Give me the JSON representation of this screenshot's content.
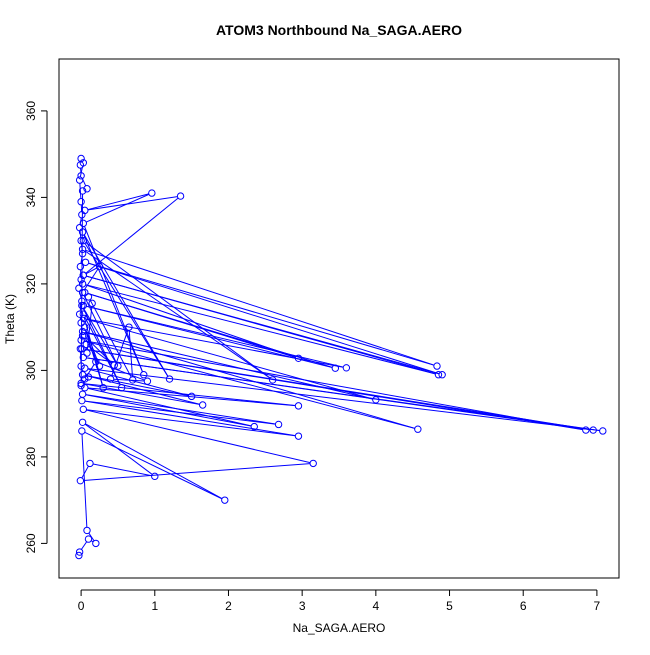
{
  "chart_data": {
    "type": "line",
    "title": "ATOM3 Northbound Na_SAGA.AERO",
    "xlabel": "Na_SAGA.AERO",
    "ylabel": "Theta (K)",
    "xlim": [
      -0.3,
      7.3
    ],
    "ylim": [
      252,
      372
    ],
    "xticks": [
      0,
      1,
      2,
      3,
      4,
      5,
      6,
      7
    ],
    "yticks": [
      260,
      280,
      300,
      320,
      340,
      360
    ],
    "grid": false,
    "series": [
      {
        "color": "#0000ff",
        "marker": "open-circle",
        "points": [
          [
            -0.03,
            257.2
          ],
          [
            -0.02,
            258.0
          ],
          [
            0.1,
            261.0
          ],
          [
            0.2,
            260.0
          ],
          [
            0.08,
            263.0
          ],
          [
            0.01,
            286.0
          ],
          [
            1.95,
            270.0
          ],
          [
            0.02,
            288.0
          ],
          [
            1.0,
            275.5
          ],
          [
            0.12,
            278.5
          ],
          [
            -0.01,
            274.5
          ],
          [
            3.15,
            278.5
          ],
          [
            0.03,
            291.0
          ],
          [
            2.95,
            284.8
          ],
          [
            0.01,
            293.0
          ],
          [
            2.68,
            287.5
          ],
          [
            0.02,
            294.5
          ],
          [
            2.35,
            287.0
          ],
          [
            0.05,
            296.0
          ],
          [
            2.95,
            291.8
          ],
          [
            0.0,
            297.0
          ],
          [
            1.65,
            292.0
          ],
          [
            0.02,
            299.0
          ],
          [
            1.5,
            294.0
          ],
          [
            0.05,
            300.5
          ],
          [
            7.08,
            286.0
          ],
          [
            0.03,
            303.0
          ],
          [
            6.95,
            286.2
          ],
          [
            0.01,
            305.0
          ],
          [
            6.85,
            286.2
          ],
          [
            0.0,
            307.0
          ],
          [
            4.57,
            286.4
          ],
          [
            0.02,
            309.0
          ],
          [
            4.0,
            293.2
          ],
          [
            0.04,
            312.0
          ],
          [
            3.6,
            300.6
          ],
          [
            0.03,
            315.0
          ],
          [
            3.45,
            300.5
          ],
          [
            0.05,
            318.0
          ],
          [
            2.95,
            302.8
          ],
          [
            0.02,
            320.0
          ],
          [
            4.85,
            299.0
          ],
          [
            0.03,
            322.0
          ],
          [
            4.9,
            299.0
          ],
          [
            0.06,
            325.0
          ],
          [
            4.83,
            301.0
          ],
          [
            0.02,
            328.0
          ],
          [
            2.6,
            297.8
          ],
          [
            0.03,
            330.0
          ],
          [
            1.2,
            298.0
          ],
          [
            0.02,
            332.0
          ],
          [
            0.85,
            299.0
          ],
          [
            0.03,
            334.0
          ],
          [
            0.96,
            341.0
          ],
          [
            0.05,
            337.0
          ],
          [
            1.35,
            340.3
          ],
          [
            0.03,
            322.0
          ],
          [
            0.25,
            324.0
          ],
          [
            0.02,
            318.0
          ],
          [
            0.5,
            301.0
          ],
          [
            0.01,
            315.0
          ],
          [
            0.55,
            296.0
          ],
          [
            0.03,
            313.0
          ],
          [
            0.3,
            296.0
          ],
          [
            0.05,
            310.0
          ],
          [
            0.25,
            301.0
          ],
          [
            0.04,
            308.0
          ],
          [
            0.45,
            301.2
          ],
          [
            0.07,
            306.0
          ],
          [
            0.08,
            304.0
          ],
          [
            0.15,
            315.5
          ],
          [
            0.1,
            317.0
          ],
          [
            0.7,
            297.8
          ],
          [
            0.65,
            310.0
          ],
          [
            0.4,
            298.0
          ],
          [
            0.9,
            297.5
          ],
          [
            0.2,
            302.0
          ],
          [
            0.05,
            298.0
          ],
          [
            0.1,
            298.5
          ],
          [
            0.0,
            296.5
          ],
          [
            0.02,
            341.5
          ],
          [
            0.08,
            342.0
          ],
          [
            0.0,
            345.0
          ],
          [
            -0.01,
            347.5
          ],
          [
            0.0,
            349.0
          ],
          [
            0.03,
            348.0
          ],
          [
            -0.02,
            344.0
          ],
          [
            0.0,
            339.0
          ],
          [
            0.01,
            336.0
          ],
          [
            -0.02,
            333.0
          ],
          [
            0.0,
            330.0
          ],
          [
            0.02,
            327.0
          ],
          [
            -0.01,
            324.0
          ],
          [
            0.0,
            321.0
          ],
          [
            -0.03,
            319.0
          ],
          [
            0.01,
            316.0
          ],
          [
            -0.02,
            313.0
          ],
          [
            0.0,
            311.0
          ],
          [
            0.02,
            308.0
          ],
          [
            -0.01,
            305.0
          ],
          [
            0.0,
            301.0
          ]
        ]
      }
    ]
  }
}
